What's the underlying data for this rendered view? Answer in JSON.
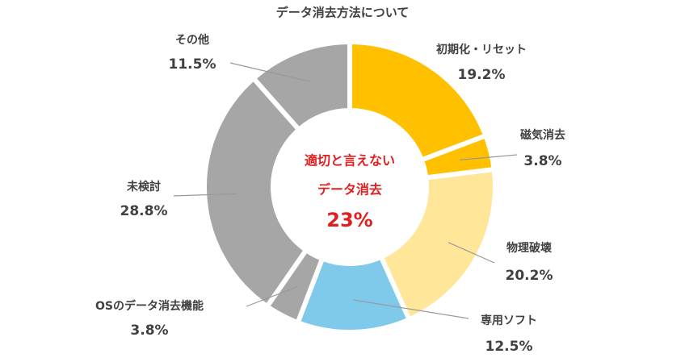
{
  "chart_data": {
    "type": "donut",
    "title": "データ消去方法について",
    "categories": [
      "初期化・リセット",
      "磁気消去",
      "物理破壊",
      "専用ソフト",
      "OSのデータ消去機能",
      "未検討",
      "その他"
    ],
    "values": [
      19.2,
      3.8,
      20.2,
      12.5,
      3.8,
      28.8,
      11.5
    ],
    "value_labels": [
      "19.2%",
      "3.8%",
      "20.2%",
      "12.5%",
      "3.8%",
      "28.8%",
      "11.5%"
    ],
    "colors": [
      "#FFC000",
      "#FFC000",
      "#FFE699",
      "#7FC9EA",
      "#A6A6A6",
      "#A6A6A6",
      "#A6A6A6"
    ],
    "annotation": [
      "適切と言えない",
      "データ消去",
      "23%"
    ]
  }
}
